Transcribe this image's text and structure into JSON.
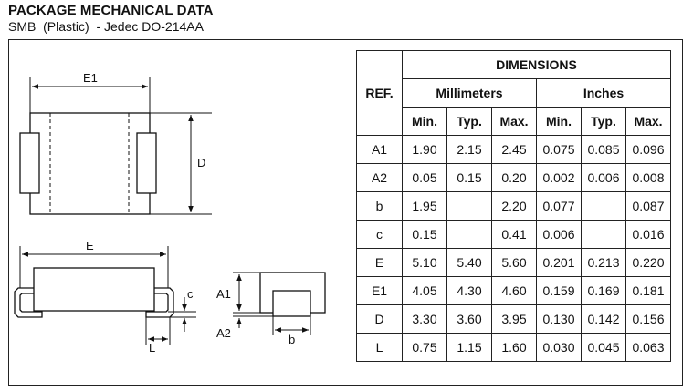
{
  "header": {
    "title": "PACKAGE MECHANICAL DATA",
    "subtitle": "SMB  (Plastic)  - Jedec DO-214AA"
  },
  "drawing": {
    "labels": {
      "E1": "E1",
      "D": "D",
      "E": "E",
      "c": "c",
      "L": "L",
      "A1": "A1",
      "A2": "A2",
      "b": "b"
    }
  },
  "table": {
    "title": "DIMENSIONS",
    "ref_header": "REF.",
    "mm_header": "Millimeters",
    "in_header": "Inches",
    "sub_headers": [
      "Min.",
      "Typ.",
      "Max.",
      "Min.",
      "Typ.",
      "Max."
    ],
    "rows": [
      {
        "ref": "A1",
        "cells": [
          "1.90",
          "2.15",
          "2.45",
          "0.075",
          "0.085",
          "0.096"
        ]
      },
      {
        "ref": "A2",
        "cells": [
          "0.05",
          "0.15",
          "0.20",
          "0.002",
          "0.006",
          "0.008"
        ]
      },
      {
        "ref": "b",
        "cells": [
          "1.95",
          "",
          "2.20",
          "0.077",
          "",
          "0.087"
        ]
      },
      {
        "ref": "c",
        "cells": [
          "0.15",
          "",
          "0.41",
          "0.006",
          "",
          "0.016"
        ]
      },
      {
        "ref": "E",
        "cells": [
          "5.10",
          "5.40",
          "5.60",
          "0.201",
          "0.213",
          "0.220"
        ]
      },
      {
        "ref": "E1",
        "cells": [
          "4.05",
          "4.30",
          "4.60",
          "0.159",
          "0.169",
          "0.181"
        ]
      },
      {
        "ref": "D",
        "cells": [
          "3.30",
          "3.60",
          "3.95",
          "0.130",
          "0.142",
          "0.156"
        ]
      },
      {
        "ref": "L",
        "cells": [
          "0.75",
          "1.15",
          "1.60",
          "0.030",
          "0.045",
          "0.063"
        ]
      }
    ]
  }
}
